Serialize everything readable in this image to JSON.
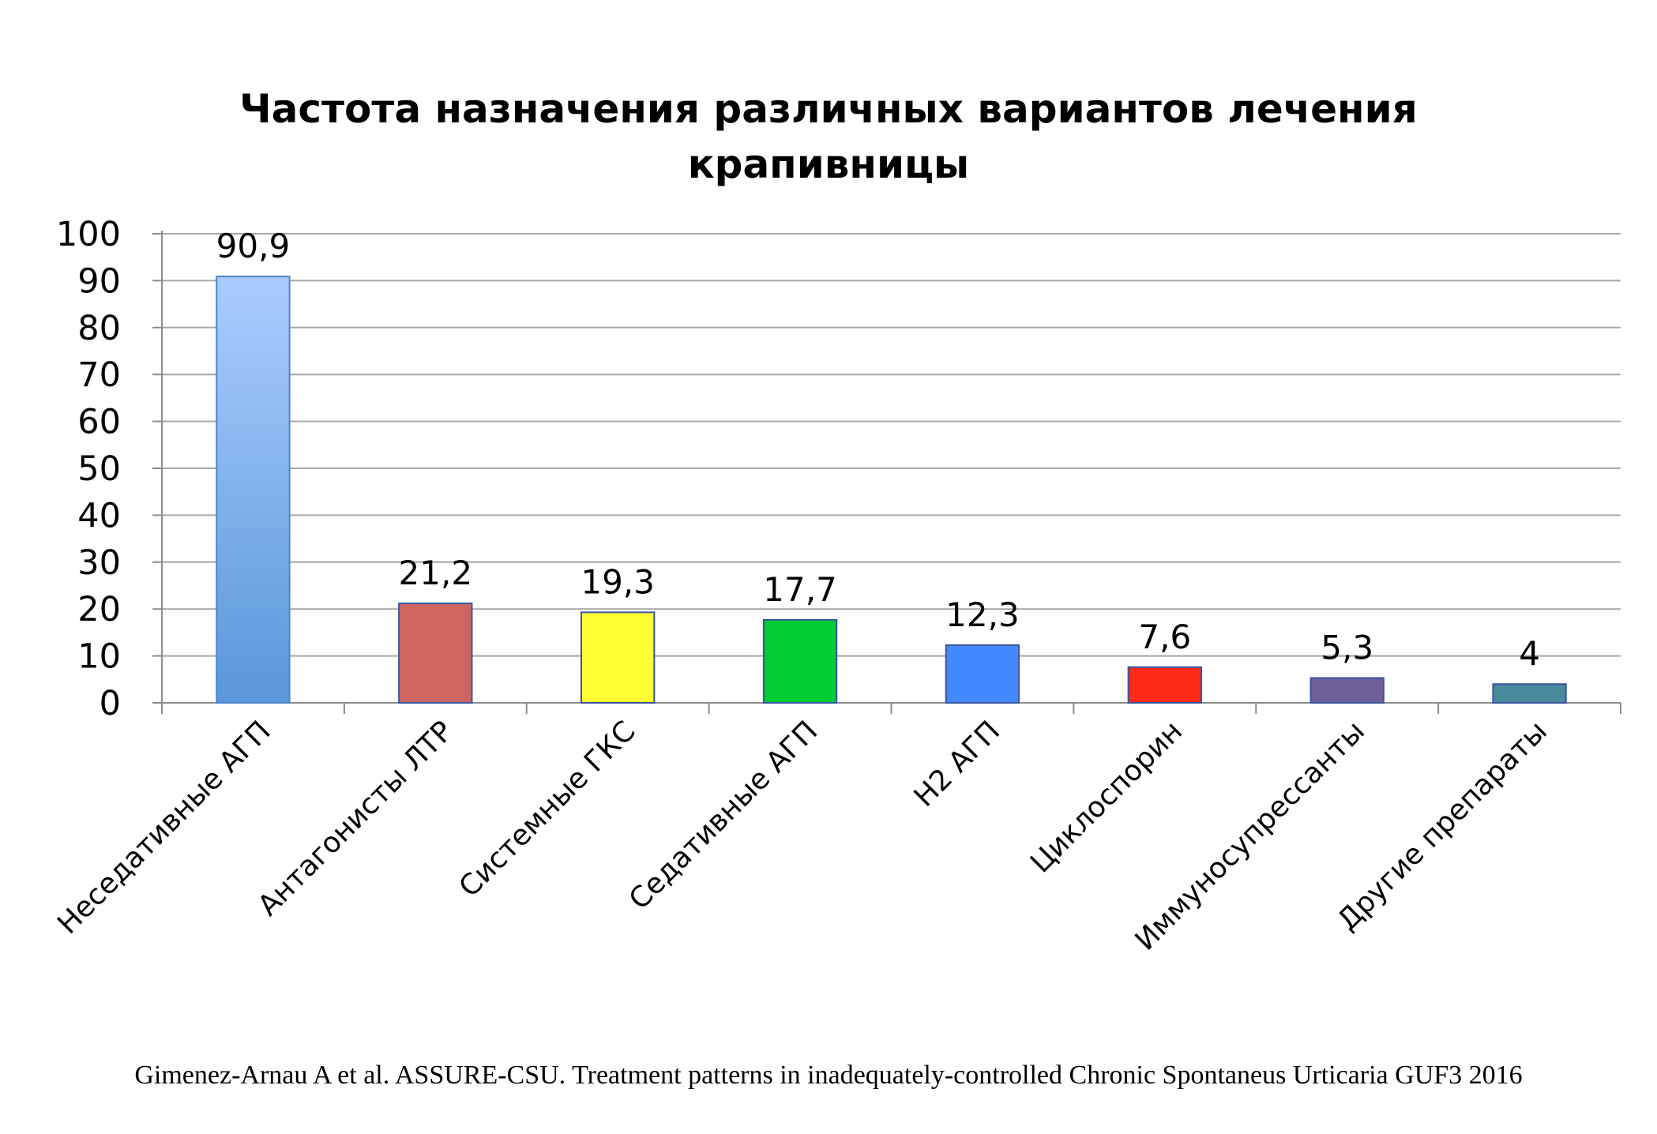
{
  "chart_data": {
    "type": "bar",
    "title": "Частота назначения различных вариантов лечения крапивницы",
    "title_lines": [
      "Частота назначения различных вариантов лечения",
      "крапивницы"
    ],
    "categories": [
      "Неседативные АГП",
      "Антагонисты ЛТР",
      "Системные ГКС",
      "Седативные АГП",
      "H2 АГП",
      "Циклоспорин",
      "Иммуносупрессанты",
      "Другие препараты"
    ],
    "values": [
      90.9,
      21.2,
      19.3,
      17.7,
      12.3,
      7.6,
      5.3,
      4
    ],
    "value_labels": [
      "90,9",
      "21,2",
      "19,3",
      "17,7",
      "12,3",
      "7,6",
      "5,3",
      "4"
    ],
    "colors": [
      "#5d9be0",
      "#cd6661",
      "#ffff33",
      "#00cc33",
      "#4488ff",
      "#ff2a1a",
      "#70609a",
      "#4a8a9d"
    ],
    "ylim": [
      0,
      100
    ],
    "yticks": [
      0,
      10,
      20,
      30,
      40,
      50,
      60,
      70,
      80,
      90,
      100
    ],
    "grid": true,
    "xlabel": "",
    "ylabel": ""
  },
  "citation": "Gimenez-Arnau A et al. ASSURE-CSU. Treatment patterns in inadequately-controlled Chronic Spontaneus Urticaria GUF3 2016"
}
